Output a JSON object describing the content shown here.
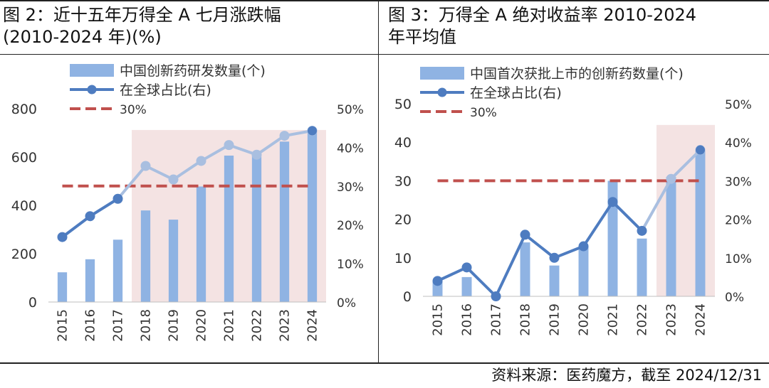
{
  "panels": [
    {
      "title_line1": "图 2：近十五年万得全 A 七月涨跌幅",
      "title_line2": "(2010-2024 年)(%)",
      "chart_data": {
        "type": "bar",
        "categories": [
          "2015",
          "2016",
          "2017",
          "2018",
          "2019",
          "2020",
          "2021",
          "2022",
          "2023",
          "2024"
        ],
        "ylim": [
          0,
          800
        ],
        "y_ticks": [
          "0",
          "200",
          "400",
          "600",
          "800"
        ],
        "y2lim": [
          0,
          50
        ],
        "y2_ticks": [
          "0%",
          "10%",
          "20%",
          "30%",
          "40%",
          "50%"
        ],
        "series": [
          {
            "name": "中国创新药研发数量(个)",
            "kind": "bar",
            "axis": "left",
            "color": "#8fb3e3",
            "values": [
              123,
              177,
              258,
              379,
              341,
              478,
              606,
              612,
              664,
              714
            ]
          },
          {
            "name": "在全球占比(右)",
            "kind": "line",
            "axis": "right",
            "color": "#4e7cc0",
            "values": [
              16.8,
              22.2,
              26.7,
              35.2,
              31.7,
              36.5,
              40.6,
              38.1,
              43.0,
              44.3
            ]
          },
          {
            "name": "30%",
            "kind": "reference",
            "axis": "right",
            "color": "#c0504d",
            "value": 30
          }
        ],
        "highlight_from": "2018",
        "highlight_color": "#f2dede"
      }
    },
    {
      "title_line1": "图 3：万得全 A 绝对收益率 2010-2024",
      "title_line2": "年平均值",
      "chart_data": {
        "type": "bar",
        "categories": [
          "2015",
          "2016",
          "2017",
          "2018",
          "2019",
          "2020",
          "2021",
          "2022",
          "2023",
          "2024"
        ],
        "ylim": [
          0,
          50
        ],
        "y_ticks": [
          "0",
          "10",
          "20",
          "30",
          "40",
          "50"
        ],
        "y2lim": [
          0,
          50
        ],
        "y2_ticks": [
          "0%",
          "10%",
          "20%",
          "30%",
          "40%",
          "50%"
        ],
        "series": [
          {
            "name": "中国首次获批上市的创新药数量(个)",
            "kind": "bar",
            "axis": "left",
            "color": "#8fb3e3",
            "values": [
              4,
              5,
              0,
              14,
              8,
              13,
              30,
              15,
              31,
              38
            ]
          },
          {
            "name": "在全球占比(右)",
            "kind": "line",
            "axis": "right",
            "color": "#4e7cc0",
            "values": [
              4.0,
              7.5,
              0.0,
              16.0,
              10.0,
              13.0,
              24.5,
              17.0,
              30.5,
              38.0
            ]
          },
          {
            "name": "30%",
            "kind": "reference",
            "axis": "right",
            "color": "#c0504d",
            "value": 30
          }
        ],
        "highlight_from": "2023",
        "highlight_color": "#f2dede"
      }
    }
  ],
  "footer": "资料来源：医药魔方，截至 2024/12/31"
}
